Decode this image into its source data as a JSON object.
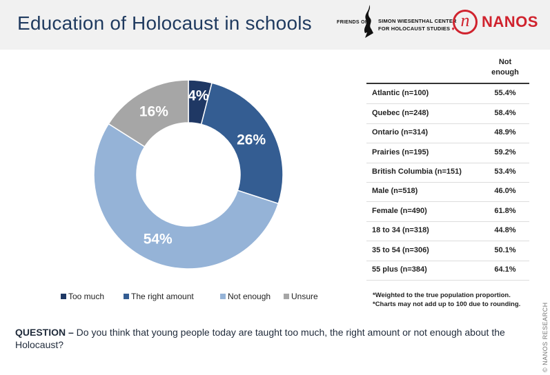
{
  "header": {
    "title": "Education of Holocaust in schools",
    "fsw_friends": "FRIENDS OF",
    "fsw_line1": "SIMON WIESENTHAL CENTER",
    "fsw_line2": "FOR HOLOCAUST STUDIES",
    "nanos_letter": "n",
    "nanos_word": "NANOS"
  },
  "chart_data": {
    "type": "pie",
    "donut": true,
    "categories": [
      "Too much",
      "The right amount",
      "Not enough",
      "Unsure"
    ],
    "values": [
      4,
      26,
      54,
      16
    ],
    "labels": [
      "4%",
      "26%",
      "54%",
      "16%"
    ],
    "colors": [
      "#1f3864",
      "#345d92",
      "#95b3d7",
      "#a6a6a6"
    ],
    "legend_position": "bottom"
  },
  "table": {
    "header": [
      "Not",
      "enough"
    ],
    "rows": [
      {
        "label": "Atlantic (n=100)",
        "value": "55.4%"
      },
      {
        "label": "Quebec (n=248)",
        "value": "58.4%"
      },
      {
        "label": "Ontario (n=314)",
        "value": "48.9%"
      },
      {
        "label": "Prairies (n=195)",
        "value": "59.2%"
      },
      {
        "label": "British Columbia (n=151)",
        "value": "53.4%"
      },
      {
        "label": "Male (n=518)",
        "value": "46.0%"
      },
      {
        "label": "Female (n=490)",
        "value": "61.8%"
      },
      {
        "label": "18 to 34 (n=318)",
        "value": "44.8%"
      },
      {
        "label": "35 to 54 (n=306)",
        "value": "50.1%"
      },
      {
        "label": "55 plus (n=384)",
        "value": "64.1%"
      }
    ]
  },
  "notes": [
    "*Weighted to the true population proportion.",
    "*Charts may not add up to 100 due to rounding."
  ],
  "question": {
    "prefix": "QUESTION –",
    "text": " Do you think that young people today are taught too much, the right amount or not enough about the Holocaust?"
  },
  "copyright": "© NANOS RESEARCH"
}
